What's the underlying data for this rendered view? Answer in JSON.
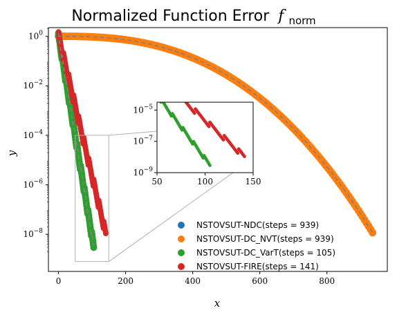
{
  "chart_data": {
    "type": "scatter",
    "title": "Normalized Function Error",
    "title_math": "f",
    "title_sub": "norm",
    "xlabel": "x",
    "ylabel": "y",
    "xlim": [
      -30,
      980
    ],
    "ylog": true,
    "ylim_exp": [
      -9.5,
      0.35
    ],
    "x_ticks": [
      0,
      200,
      400,
      600,
      800
    ],
    "y_tick_exps": [
      0,
      -2,
      -4,
      -6,
      -8
    ],
    "grid": false,
    "legend_position": "lower-right",
    "series": [
      {
        "name": "NSTOVSUT-NDC(steps = 939)",
        "color": "#1f77b4",
        "steps": 939,
        "start": 1.0,
        "end": 1e-08
      },
      {
        "name": "NSTOVSUT-DC_NVT(steps = 939)",
        "color": "#ff7f0e",
        "steps": 939,
        "start": 1.0,
        "end": 1e-08
      },
      {
        "name": "NSTOVSUT-DC_VarT(steps = 105)",
        "color": "#2ca02c",
        "steps": 105,
        "start": 1.0,
        "end": 3e-09
      },
      {
        "name": "NSTOVSUT-FIRE(steps = 141)",
        "color": "#d62728",
        "steps": 141,
        "start": 1.0,
        "end": 1e-08
      }
    ],
    "trend_line": {
      "color": "#7f7f7f",
      "style": "dashed"
    },
    "inset": {
      "xlim": [
        50,
        150
      ],
      "ylog": true,
      "ylim_exp": [
        -9,
        -4.5
      ],
      "x_ticks": [
        50,
        100,
        150
      ],
      "y_tick_exps": [
        -5,
        -7,
        -9
      ]
    }
  }
}
